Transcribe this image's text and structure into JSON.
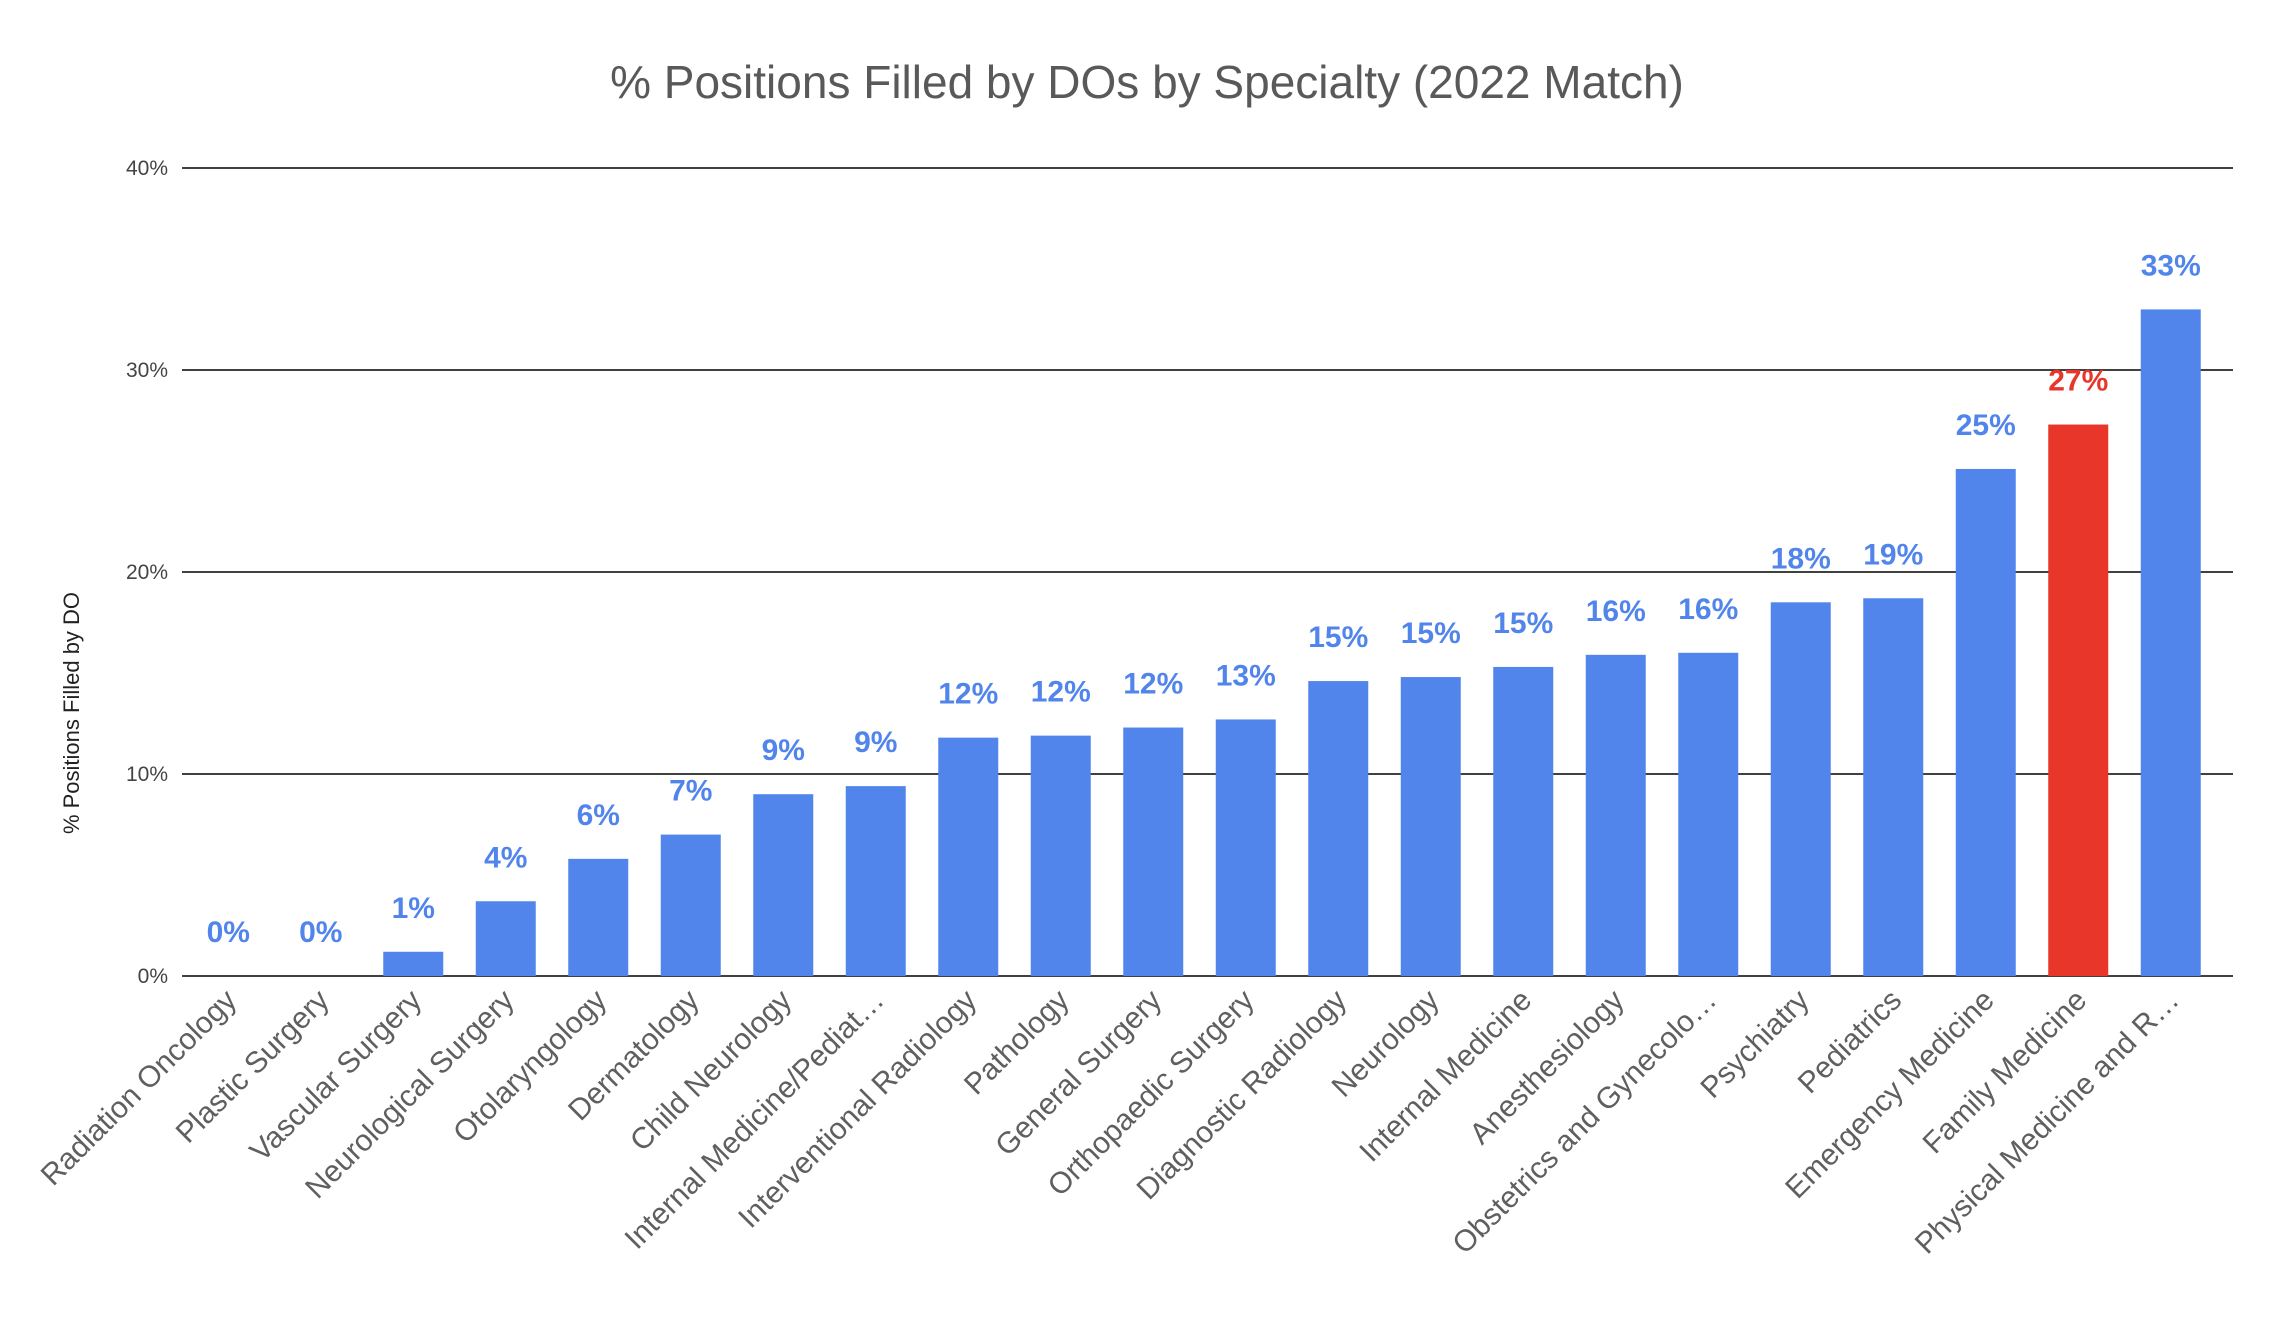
{
  "chart_data": {
    "type": "bar",
    "title": "% Positions Filled by DOs by Specialty (2022 Match)",
    "xlabel": "",
    "ylabel": "% Positions Filled by DO",
    "ylim": [
      0,
      40
    ],
    "yticks": [
      0,
      10,
      20,
      30,
      40
    ],
    "ytick_labels": [
      "0%",
      "10%",
      "20%",
      "30%",
      "40%"
    ],
    "grid": true,
    "legend": "none",
    "categories": [
      "Radiation Oncology",
      "Plastic Surgery",
      "Vascular Surgery",
      "Neurological Surgery",
      "Otolaryngology",
      "Dermatology",
      "Child Neurology",
      "Internal Medicine/Pediat…",
      "Interventional Radiology",
      "Pathology",
      "General Surgery",
      "Orthopaedic Surgery",
      "Diagnostic Radiology",
      "Neurology",
      "Internal Medicine",
      "Anesthesiology",
      "Obstetrics and Gynecolo…",
      "Psychiatry",
      "Pediatrics",
      "Emergency Medicine",
      "Family Medicine",
      "Physical Medicine and R…"
    ],
    "values": [
      0,
      0,
      1.2,
      3.7,
      5.8,
      7.0,
      9.0,
      9.4,
      11.8,
      11.9,
      12.3,
      12.7,
      14.6,
      14.8,
      15.3,
      15.9,
      16.0,
      18.5,
      18.7,
      25.1,
      27.3,
      33.0
    ],
    "data_labels": [
      "0%",
      "0%",
      "1%",
      "4%",
      "6%",
      "7%",
      "9%",
      "9%",
      "12%",
      "12%",
      "12%",
      "13%",
      "15%",
      "15%",
      "15%",
      "16%",
      "16%",
      "18%",
      "19%",
      "25%",
      "27%",
      "33%"
    ],
    "colors": {
      "default": "#5185ec",
      "highlight": "#e8362a",
      "title": "#595959",
      "tick": "#444444",
      "category": "#5f5f5f",
      "grid": "#000000"
    },
    "highlight_index": 20
  }
}
